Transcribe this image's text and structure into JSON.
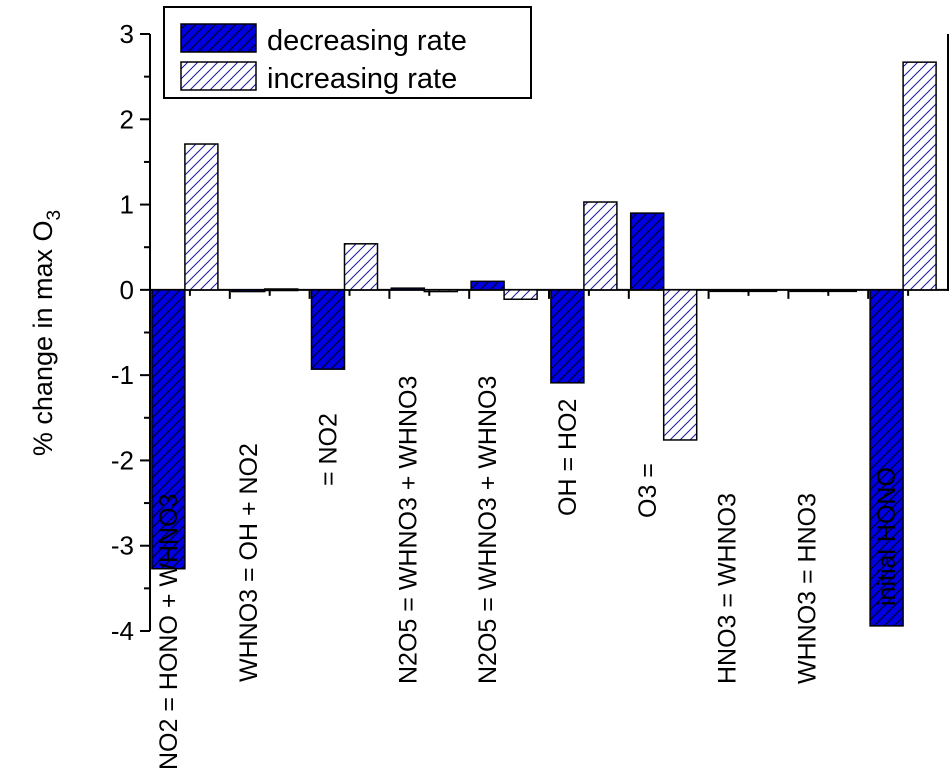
{
  "chart_data": {
    "type": "bar",
    "ylabel": "% change in max O",
    "ylabel_subscript": "3",
    "xlabel": "",
    "ylim": [
      -4,
      3
    ],
    "y_ticks": [
      "-4",
      "-3",
      "-2",
      "-1",
      "0",
      "1",
      "2",
      "3"
    ],
    "categories": [
      "NO2 = HONO + WHNO3",
      "WHNO3 = OH + NO2",
      "= NO2",
      "N2O5 = WHNO3 + WHNO3",
      "N2O5 = WHNO3 + WHNO3",
      "OH = HO2",
      "O3 =",
      "HNO3 = WHNO3",
      "WHNO3 = HNO3",
      "initial HONO"
    ],
    "series": [
      {
        "name": "decreasing rate",
        "fill": "#0000e0",
        "pattern": "hatch-dark",
        "values": [
          -3.27,
          -0.02,
          -0.93,
          0.02,
          0.1,
          -1.09,
          0.9,
          -0.01,
          -0.01,
          -3.94
        ]
      },
      {
        "name": "increasing rate",
        "fill": "#ffffff",
        "pattern": "hatch-light",
        "values": [
          1.71,
          0.01,
          0.54,
          -0.02,
          -0.11,
          1.03,
          -1.76,
          0.0,
          0.0,
          2.67
        ]
      }
    ],
    "legend": {
      "position": "top-left"
    },
    "grid": false
  }
}
